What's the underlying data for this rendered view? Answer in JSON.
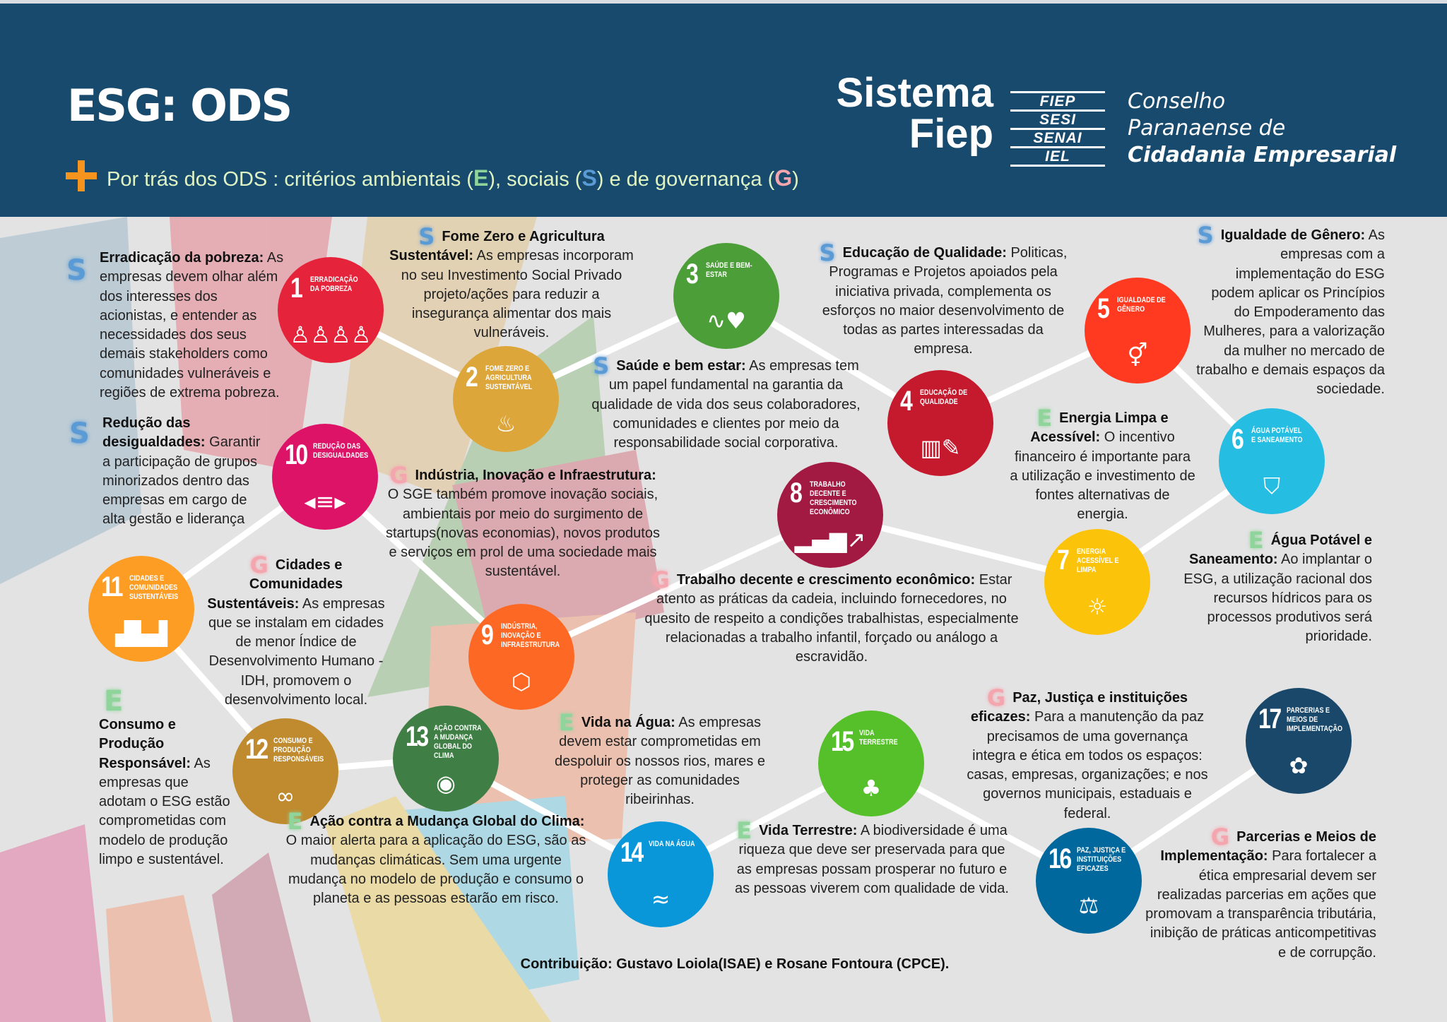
{
  "header": {
    "title": "ESG: ODS",
    "subtitle_prefix": "Por trás dos ODS : critérios ambientais (",
    "letter_e": "E",
    "subtitle_mid1": "), sociais (",
    "letter_s": "S",
    "subtitle_mid2": ") e de governança (",
    "letter_g": "G",
    "subtitle_suffix": ")",
    "plus_icon": "plus-icon",
    "background": "#174a6c"
  },
  "logo": {
    "line1": "Sistema",
    "line2": "Fiep",
    "orgs": [
      "FIEP",
      "SESI",
      "SENAI",
      "IEL"
    ],
    "council_line1": "Conselho",
    "council_line2": "Paranaense de",
    "council_line3": "Cidadania Empresarial"
  },
  "criteria_colors": {
    "E": "#8fd49a",
    "S": "#5b9bd5",
    "G": "#f4a6ae"
  },
  "goals": [
    {
      "number": "1",
      "label": "ERRADICAÇÃO DA POBREZA",
      "color": "#e5243b",
      "icon": "family-icon",
      "glyph": "♙♙♙♙"
    },
    {
      "number": "2",
      "label": "FOME ZERO E AGRICULTURA SUSTENTÁVEL",
      "color": "#dda63a",
      "icon": "bowl-icon",
      "glyph": "♨"
    },
    {
      "number": "3",
      "label": "SAÚDE E BEM-ESTAR",
      "color": "#4c9f38",
      "icon": "heartbeat-icon",
      "glyph": "∿♥"
    },
    {
      "number": "4",
      "label": "EDUCAÇÃO DE QUALIDADE",
      "color": "#c5192d",
      "icon": "book-icon",
      "glyph": "▥✎"
    },
    {
      "number": "5",
      "label": "IGUALDADE DE GÊNERO",
      "color": "#ff3a21",
      "icon": "gender-icon",
      "glyph": "⚥"
    },
    {
      "number": "6",
      "label": "ÁGUA POTÁVEL E SANEAMENTO",
      "color": "#26bde2",
      "icon": "water-icon",
      "glyph": "⛉"
    },
    {
      "number": "7",
      "label": "ENERGIA ACESSÍVEL E LIMPA",
      "color": "#fcc30b",
      "icon": "sun-power-icon",
      "glyph": "☼"
    },
    {
      "number": "8",
      "label": "TRABALHO DECENTE E CRESCIMENTO ECONÔMICO",
      "color": "#a21942",
      "icon": "growth-chart-icon",
      "glyph": "▂▄▆↗"
    },
    {
      "number": "9",
      "label": "INDÚSTRIA, INOVAÇÃO E INFRAESTRUTURA",
      "color": "#fd6925",
      "icon": "cubes-icon",
      "glyph": "⬡"
    },
    {
      "number": "10",
      "label": "REDUÇÃO DAS DESIGUALDADES",
      "color": "#dd1367",
      "icon": "equality-arrows-icon",
      "glyph": "◂≡▸"
    },
    {
      "number": "11",
      "label": "CIDADES E COMUNIDADES SUSTENTÁVEIS",
      "color": "#fd9d24",
      "icon": "city-icon",
      "glyph": "▟▙▟"
    },
    {
      "number": "12",
      "label": "CONSUMO E PRODUÇÃO RESPONSÁVEIS",
      "color": "#bf8b2e",
      "icon": "infinity-icon",
      "glyph": "∞"
    },
    {
      "number": "13",
      "label": "AÇÃO CONTRA A MUDANÇA GLOBAL DO CLIMA",
      "color": "#3f7e44",
      "icon": "eye-globe-icon",
      "glyph": "◉"
    },
    {
      "number": "14",
      "label": "VIDA NA ÁGUA",
      "color": "#0a97d9",
      "icon": "fish-icon",
      "glyph": "≈"
    },
    {
      "number": "15",
      "label": "VIDA TERRESTRE",
      "color": "#56c02b",
      "icon": "tree-icon",
      "glyph": "♣"
    },
    {
      "number": "16",
      "label": "PAZ, JUSTIÇA E INSTITUIÇÕES EFICAZES",
      "color": "#00689d",
      "icon": "dove-gavel-icon",
      "glyph": "⚖"
    },
    {
      "number": "17",
      "label": "PARCERIAS E MEIOS DE IMPLEMENTAÇÃO",
      "color": "#19486a",
      "icon": "rings-icon",
      "glyph": "✿"
    }
  ],
  "blocks": [
    {
      "id": "erradicacao",
      "criterion": "S",
      "title": "Erradicação da pobreza:",
      "body": "As empresas devem olhar além dos interesses dos acionistas, e entender as necessidades dos seus demais stakeholders como comunidades vulneráveis e regiões de extrema pobreza."
    },
    {
      "id": "fome-zero",
      "criterion": "S",
      "title": "Fome Zero e Agricultura Sustentável:",
      "body": "As empresas incorporam no seu Investimento Social Privado projeto/ações para reduzir a insegurança alimentar dos mais vulneráveis."
    },
    {
      "id": "saude",
      "criterion": "S",
      "title": "Saúde e bem estar:",
      "body": "As empresas tem um papel fundamental na garantia da qualidade de vida dos seus colaboradores, comunidades e clientes por meio da responsabilidade social corporativa."
    },
    {
      "id": "educacao",
      "criterion": "S",
      "title": "Educação de Qualidade:",
      "body": "Politicas, Programas e Projetos apoiados pela iniciativa privada, complementa os esforços no maior desenvolvimento de todas as partes interessadas da empresa."
    },
    {
      "id": "igualdade",
      "criterion": "S",
      "title": "Igualdade de Gênero:",
      "body": "As empresas com a implementação do ESG podem aplicar os Princípios do Empoderamento das Mulheres, para a valorização da mulher no mercado de trabalho e demais espaços da sociedade."
    },
    {
      "id": "reducao",
      "criterion": "S",
      "title": "Redução das desigualdades:",
      "body": "Garantir a participação de grupos minorizados dentro das empresas em cargo de alta gestão e liderança"
    },
    {
      "id": "industria",
      "criterion": "G",
      "title": "Indústria, Inovação e Infraestrutura:",
      "body": "O SGE também promove inovação sociais, ambientais por meio do surgimento de startups(novas economias), novos produtos e serviços em prol de uma sociedade mais sustentável."
    },
    {
      "id": "energia",
      "criterion": "E",
      "title": "Energia Limpa e Acessível:",
      "body": "O incentivo financeiro é importante para a utilização e investimento de fontes alternativas de energia."
    },
    {
      "id": "agua-potavel",
      "criterion": "E",
      "title": "Água Potável e Saneamento:",
      "body": "Ao implantar o ESG, a utilização racional dos recursos hídricos para os processos produtivos será prioridade."
    },
    {
      "id": "trabalho",
      "criterion": "G",
      "title": "Trabalho decente e crescimento econômico:",
      "body": "Estar atento as práticas da cadeia, incluindo fornecedores, no quesito de respeito a condições trabalhistas, especialmente relacionadas a trabalho infantil, forçado ou análogo a escravidão."
    },
    {
      "id": "cidades",
      "criterion": "G",
      "title": "Cidades e Comunidades Sustentáveis:",
      "body": "As empresas que se instalam em cidades de menor Índice de Desenvolvimento Humano - IDH, promovem o desenvolvimento local."
    },
    {
      "id": "consumo",
      "criterion": "E",
      "title": "Consumo e Produção Responsável:",
      "body": "As empresas que adotam o ESG estão comprometidas com modelo de produção limpo e sustentável."
    },
    {
      "id": "vida-agua",
      "criterion": "E",
      "title": "Vida na Água:",
      "body": "As empresas devem estar comprometidas em despoluir os nossos rios, mares e proteger as comunidades ribeirinhas."
    },
    {
      "id": "acao-clima",
      "criterion": "E",
      "title": "Ação contra a Mudança Global do Clima:",
      "body": "O maior alerta para a aplicação do ESG, são as mudanças climáticas. Sem uma urgente mudança no modelo de produção e consumo o planeta e as pessoas estarão em risco."
    },
    {
      "id": "vida-terrestre",
      "criterion": "E",
      "title": "Vida Terrestre:",
      "body": "A biodiversidade é uma riqueza que deve ser preservada para que as empresas possam prosperar no futuro e as pessoas viverem com qualidade de vida."
    },
    {
      "id": "paz",
      "criterion": "G",
      "title": "Paz, Justiça e instituições eficazes:",
      "body": "Para a manutenção da paz precisamos de uma governança integra e ética em todos os espaços: casas, empresas, organizações; e nos governos municipais, estaduais e federal."
    },
    {
      "id": "parcerias",
      "criterion": "G",
      "title": "Parcerias e Meios de Implementação:",
      "body": "Para fortalecer a ética empresarial devem ser realizadas parcerias em ações que promovam a transparência tributária, inibição de práticas anticompetitivas e de corrupção."
    }
  ],
  "credit": "Contribuição: Gustavo Loiola(ISAE) e Rosane Fontoura (CPCE)."
}
